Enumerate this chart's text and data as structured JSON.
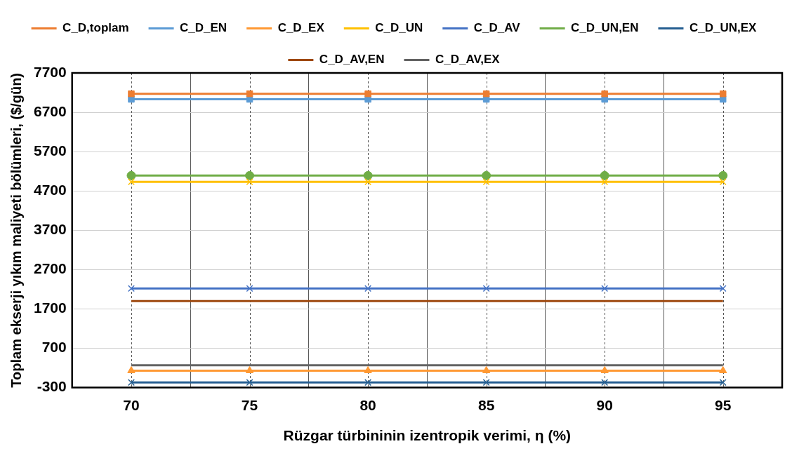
{
  "chart_data": {
    "type": "line",
    "xlabel": "Rüzgar türbininin izentropik verimi, η (%)",
    "ylabel": "Toplam ekserji yıkım maliyeti bölümleri, ($/gün)",
    "categories": [
      "70",
      "75",
      "80",
      "85",
      "90",
      "95"
    ],
    "ylim": [
      -300,
      7700
    ],
    "yticks": [
      -300,
      700,
      1700,
      2700,
      3700,
      4700,
      5700,
      6700,
      7700
    ],
    "grid": true,
    "legend": "top",
    "line_style": "solid",
    "series": [
      {
        "name": "C_D,toplam",
        "color": "#ed7d31",
        "marker": "square",
        "values": [
          7170,
          7170,
          7170,
          7170,
          7170,
          7170
        ]
      },
      {
        "name": "C_D_EN",
        "color": "#5b9bd5",
        "marker": "square",
        "values": [
          7030,
          7030,
          7030,
          7030,
          7030,
          7030
        ]
      },
      {
        "name": "C_D_EX",
        "color": "#ff9933",
        "marker": "triangle",
        "values": [
          130,
          130,
          130,
          130,
          130,
          130
        ]
      },
      {
        "name": "C_D_UN",
        "color": "#ffc000",
        "marker": "cross",
        "values": [
          4930,
          4930,
          4930,
          4930,
          4930,
          4930
        ]
      },
      {
        "name": "C_D_AV",
        "color": "#4472c4",
        "marker": "cross",
        "values": [
          2220,
          2220,
          2220,
          2220,
          2220,
          2220
        ]
      },
      {
        "name": "C_D_UN,EN",
        "color": "#70ad47",
        "marker": "circle",
        "values": [
          5090,
          5090,
          5090,
          5090,
          5090,
          5090
        ]
      },
      {
        "name": "C_D_UN,EX",
        "color": "#255e91",
        "marker": "cross",
        "values": [
          -170,
          -170,
          -170,
          -170,
          -170,
          -170
        ]
      },
      {
        "name": "C_D_AV,EN",
        "color": "#9e480e",
        "marker": "none",
        "values": [
          1900,
          1900,
          1900,
          1900,
          1900,
          1900
        ]
      },
      {
        "name": "C_D_AV,EX",
        "color": "#636363",
        "marker": "none",
        "values": [
          270,
          270,
          270,
          270,
          270,
          270
        ]
      }
    ]
  }
}
